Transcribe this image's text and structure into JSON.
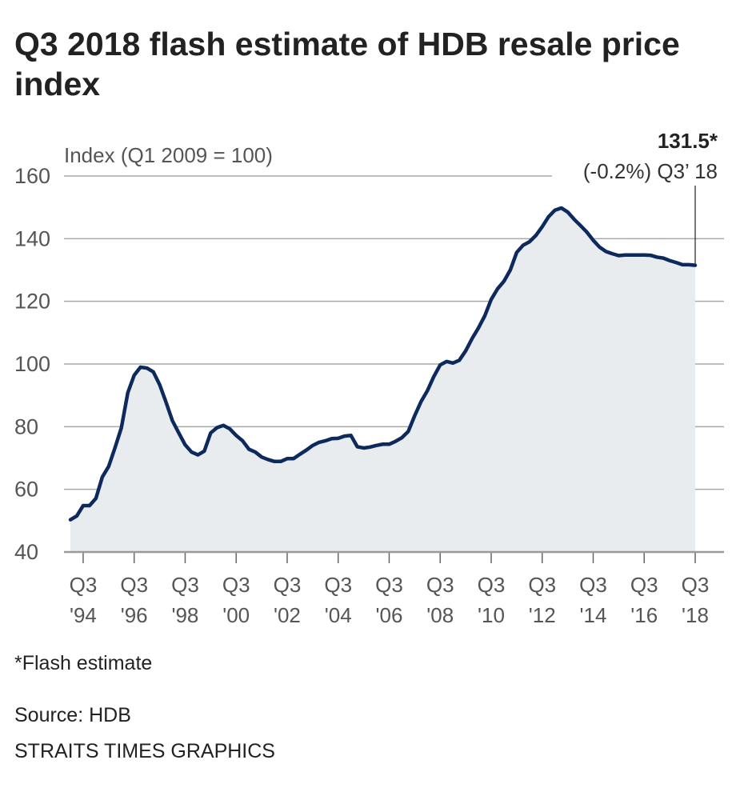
{
  "chart_data": {
    "type": "area",
    "title": "Q3 2018 flash estimate of HDB resale price index",
    "ylabel": "Index (Q1 2009 = 100)",
    "ylim": [
      40,
      160
    ],
    "yticks": [
      "40",
      "60",
      "80",
      "100",
      "120",
      "140",
      "160"
    ],
    "grid": true,
    "xtick_labels": [
      {
        "q": "Q3",
        "y": "'94"
      },
      {
        "q": "Q3",
        "y": "'96"
      },
      {
        "q": "Q3",
        "y": "'98"
      },
      {
        "q": "Q3",
        "y": "'00"
      },
      {
        "q": "Q3",
        "y": "'02"
      },
      {
        "q": "Q3",
        "y": "'04"
      },
      {
        "q": "Q3",
        "y": "'06"
      },
      {
        "q": "Q3",
        "y": "'08"
      },
      {
        "q": "Q3",
        "y": "'10"
      },
      {
        "q": "Q3",
        "y": "'12"
      },
      {
        "q": "Q3",
        "y": "'14"
      },
      {
        "q": "Q3",
        "y": "'16"
      },
      {
        "q": "Q3",
        "y": "'18"
      }
    ],
    "x": [
      "1994Q1",
      "1994Q2",
      "1994Q3",
      "1994Q4",
      "1995Q1",
      "1995Q2",
      "1995Q3",
      "1995Q4",
      "1996Q1",
      "1996Q2",
      "1996Q3",
      "1996Q4",
      "1997Q1",
      "1997Q2",
      "1997Q3",
      "1997Q4",
      "1998Q1",
      "1998Q2",
      "1998Q3",
      "1998Q4",
      "1999Q1",
      "1999Q2",
      "1999Q3",
      "1999Q4",
      "2000Q1",
      "2000Q2",
      "2000Q3",
      "2000Q4",
      "2001Q1",
      "2001Q2",
      "2001Q3",
      "2001Q4",
      "2002Q1",
      "2002Q2",
      "2002Q3",
      "2002Q4",
      "2003Q1",
      "2003Q2",
      "2003Q3",
      "2003Q4",
      "2004Q1",
      "2004Q2",
      "2004Q3",
      "2004Q4",
      "2005Q1",
      "2005Q2",
      "2005Q3",
      "2005Q4",
      "2006Q1",
      "2006Q2",
      "2006Q3",
      "2006Q4",
      "2007Q1",
      "2007Q2",
      "2007Q3",
      "2007Q4",
      "2008Q1",
      "2008Q2",
      "2008Q3",
      "2008Q4",
      "2009Q1",
      "2009Q2",
      "2009Q3",
      "2009Q4",
      "2010Q1",
      "2010Q2",
      "2010Q3",
      "2010Q4",
      "2011Q1",
      "2011Q2",
      "2011Q3",
      "2011Q4",
      "2012Q1",
      "2012Q2",
      "2012Q3",
      "2012Q4",
      "2013Q1",
      "2013Q2",
      "2013Q3",
      "2013Q4",
      "2014Q1",
      "2014Q2",
      "2014Q3",
      "2014Q4",
      "2015Q1",
      "2015Q2",
      "2015Q3",
      "2015Q4",
      "2016Q1",
      "2016Q2",
      "2016Q3",
      "2016Q4",
      "2017Q1",
      "2017Q2",
      "2017Q3",
      "2017Q4",
      "2018Q1",
      "2018Q2",
      "2018Q3"
    ],
    "values": [
      50.3,
      51.5,
      54.8,
      54.8,
      57.1,
      63.9,
      67.3,
      73.3,
      79.7,
      90.8,
      96.4,
      99.0,
      98.7,
      97.5,
      93.4,
      87.8,
      81.9,
      78.0,
      74.2,
      71.9,
      71.0,
      72.2,
      78.0,
      79.7,
      80.4,
      79.3,
      77.2,
      75.5,
      72.8,
      71.9,
      70.3,
      69.5,
      68.9,
      68.9,
      69.8,
      69.8,
      71.2,
      72.5,
      74.0,
      75.0,
      75.5,
      76.2,
      76.3,
      77.0,
      77.2,
      73.6,
      73.2,
      73.5,
      74.0,
      74.4,
      74.4,
      75.3,
      76.5,
      78.5,
      83.5,
      88.0,
      91.5,
      96.0,
      99.7,
      100.8,
      100.3,
      101.2,
      104.2,
      108.1,
      111.5,
      115.4,
      120.6,
      124.0,
      126.4,
      130.0,
      135.6,
      137.9,
      139.0,
      141.0,
      143.8,
      147.0,
      149.1,
      149.8,
      148.5,
      146.2,
      144.2,
      142.1,
      139.5,
      137.3,
      135.9,
      135.2,
      134.6,
      134.8,
      134.8,
      134.8,
      134.8,
      134.7,
      134.1,
      133.8,
      133.0,
      132.4,
      131.7,
      131.7,
      131.5
    ],
    "annotation": {
      "value": "131.5*",
      "text": "(-0.2%) Q3’ 18"
    },
    "colors": {
      "line": "#0e2a5c",
      "fill": "#e8ecee",
      "grid": "#a8a8a8"
    }
  },
  "footer": {
    "note": "*Flash estimate",
    "source": "Source: HDB",
    "credit": "STRAITS TIMES GRAPHICS"
  }
}
